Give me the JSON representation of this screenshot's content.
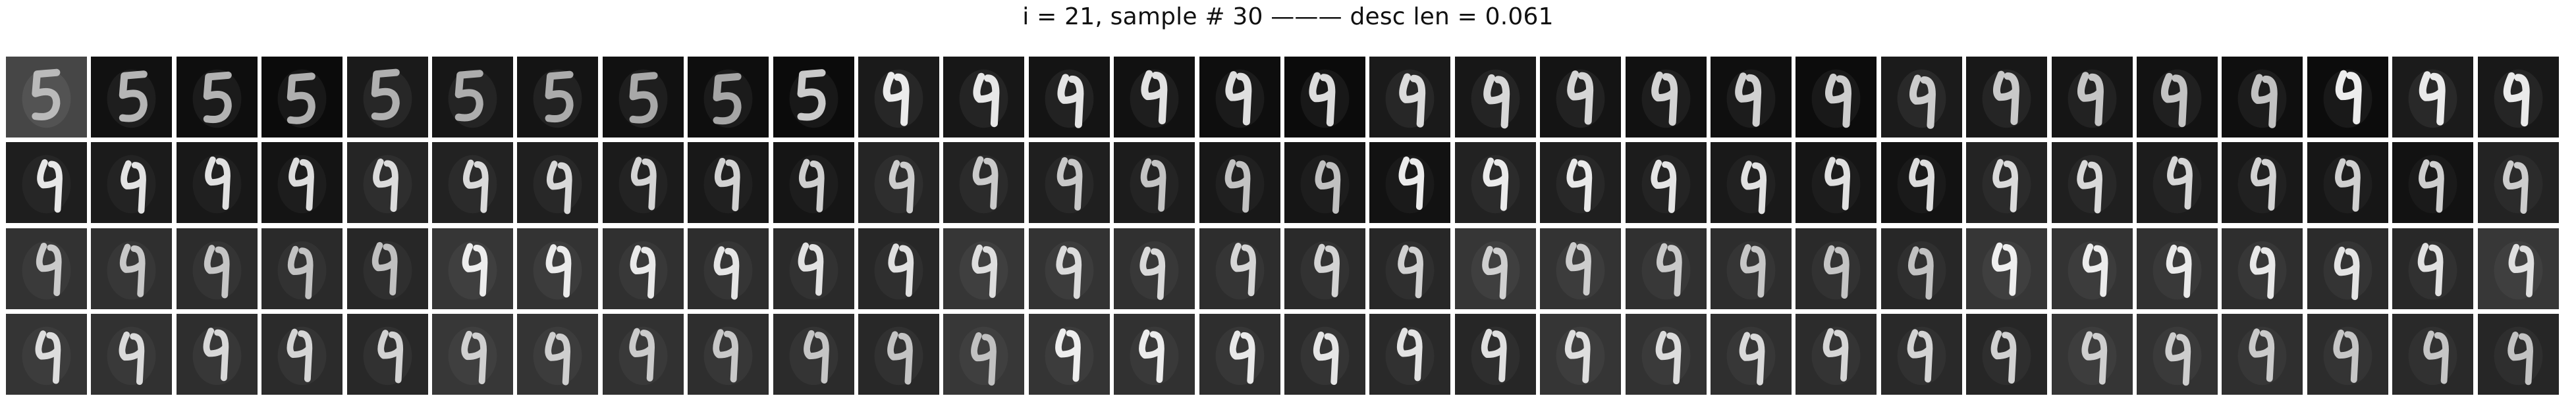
{
  "figure": {
    "title": "i = 21, sample # 30 ——— desc len = 0.061"
  },
  "grid": {
    "rows": 4,
    "columns": 30,
    "content": "reconstructed grayscale digit images (digit resembling 4/9)"
  },
  "colors": {
    "background": "#ffffff",
    "digit_stroke": "#eeeeee"
  }
}
